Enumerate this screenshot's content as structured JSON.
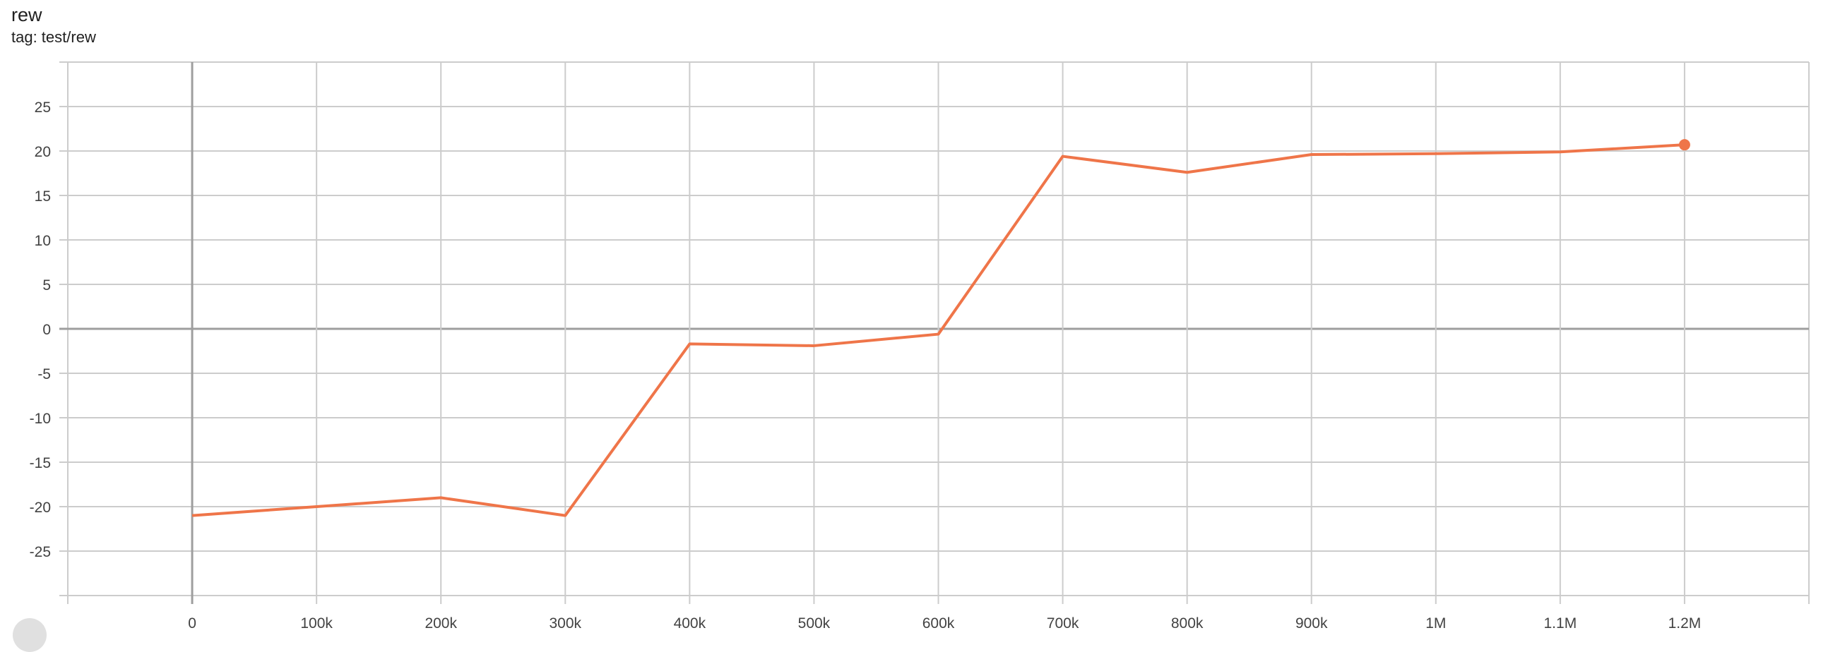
{
  "header": {
    "title": "rew",
    "subtitle": "tag: test/rew"
  },
  "chart_data": {
    "type": "line",
    "title": "rew",
    "subtitle": "tag: test/rew",
    "xlabel": "",
    "ylabel": "",
    "xlim": [
      -100000,
      1300000
    ],
    "ylim": [
      -30,
      30
    ],
    "grid": true,
    "legend": "none",
    "color": "#ef7549",
    "x_ticks": [
      0,
      100000,
      200000,
      300000,
      400000,
      500000,
      600000,
      700000,
      800000,
      900000,
      1000000,
      1100000,
      1200000
    ],
    "x_tick_labels": [
      "0",
      "100k",
      "200k",
      "300k",
      "400k",
      "500k",
      "600k",
      "700k",
      "800k",
      "900k",
      "1M",
      "1.1M",
      "1.2M"
    ],
    "y_ticks": [
      -25,
      -20,
      -15,
      -10,
      -5,
      0,
      5,
      10,
      15,
      20,
      25
    ],
    "y_tick_labels": [
      "-25",
      "-20",
      "-15",
      "-10",
      "-5",
      "0",
      "5",
      "10",
      "15",
      "20",
      "25"
    ],
    "series": [
      {
        "x": [
          0,
          100000,
          200000,
          300000,
          400000,
          500000,
          600000,
          700000,
          800000,
          900000,
          1000000,
          1100000,
          1200000
        ],
        "y": [
          -21,
          -20,
          -19,
          -21,
          -1.7,
          -1.9,
          -0.6,
          19.4,
          17.6,
          19.6,
          19.7,
          19.9,
          20.7
        ]
      }
    ]
  }
}
